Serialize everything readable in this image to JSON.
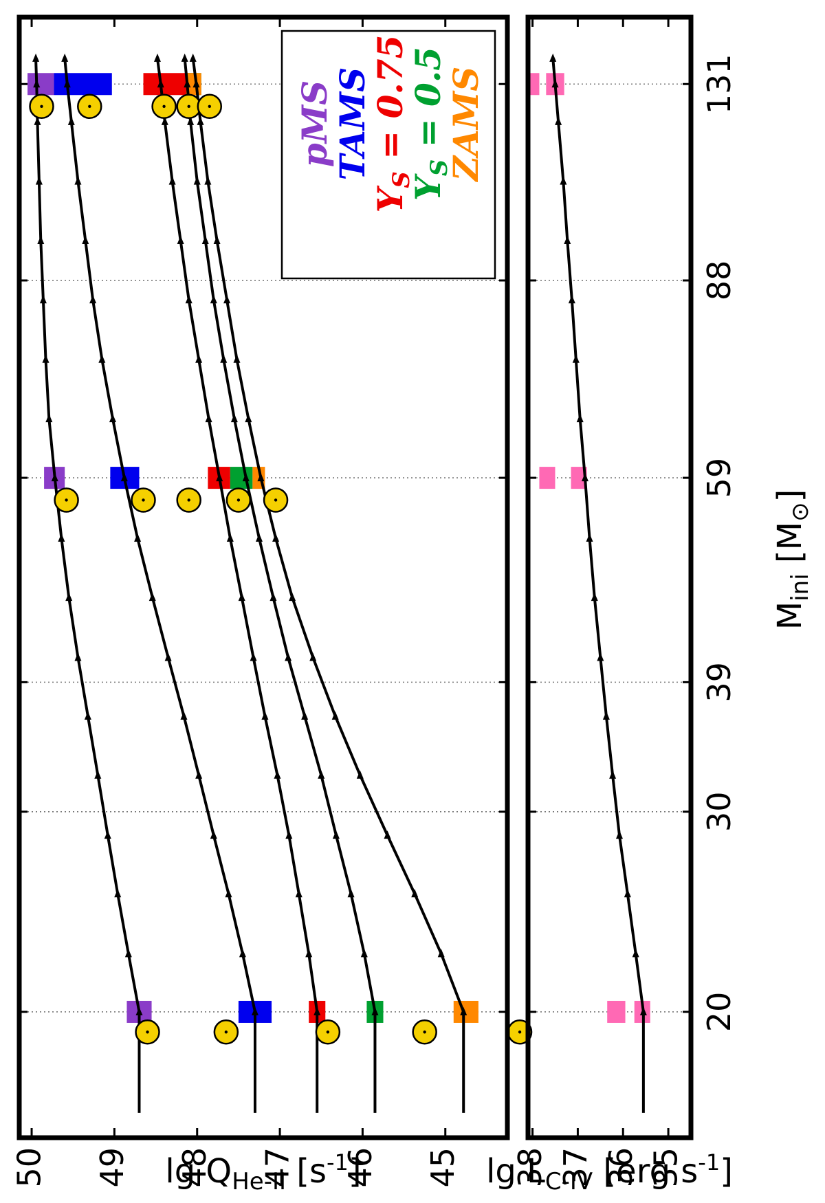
{
  "chart_data": {
    "type": "line",
    "x_label_text": "M",
    "x_label_sub": "ini",
    "x_label_unit": " [M",
    "x_label_sun": "⊙",
    "x_label_close": "]",
    "x_axis": {
      "scale": "log",
      "lim": [
        15.5,
        150
      ],
      "ticks": [
        20,
        30,
        39,
        59,
        88,
        131
      ]
    },
    "grid": "x-dotted",
    "legend_position": "top-right",
    "legend": [
      {
        "label": "pMS",
        "color": "#8a3cc8"
      },
      {
        "label": "TAMS",
        "color": "#0000ee"
      },
      {
        "label": "Y_S = 0.75",
        "main": "Y",
        "sub": "S",
        "rest": " = 0.75",
        "color": "#ee0000"
      },
      {
        "label": "Y_S = 0.5",
        "main": "Y",
        "sub": "S",
        "rest": " = 0.5",
        "color": "#00a030"
      },
      {
        "label": "ZAMS",
        "color": "#ff8800"
      }
    ],
    "panels": [
      {
        "id": "top",
        "ylabel_text": "lg Q",
        "ylabel_sub": "He-II",
        "ylabel_unit": " [s",
        "ylabel_sup": "-1",
        "ylabel_close": "]",
        "ylim": [
          44.25,
          50.15
        ],
        "yticks": [
          45,
          46,
          47,
          48,
          49,
          50
        ],
        "series": [
          {
            "name": "pMS",
            "x": [
              16.3,
              20,
              22.5,
              25.4,
              28.6,
              32.3,
              36.4,
              41,
              46.3,
              52.2,
              59,
              66.5,
              75,
              84.6,
              95.4,
              107.6,
              121.4,
              131,
              138
            ],
            "y": [
              48.7,
              48.7,
              48.83,
              48.96,
              49.08,
              49.2,
              49.32,
              49.44,
              49.55,
              49.64,
              49.72,
              49.79,
              49.83,
              49.86,
              49.89,
              49.91,
              49.93,
              49.94,
              49.95
            ]
          },
          {
            "name": "TAMS",
            "x": [
              16.3,
              20,
              22.5,
              25.4,
              28.6,
              32.3,
              36.4,
              41,
              46.3,
              52.2,
              59,
              66.5,
              75,
              84.6,
              95.4,
              107.6,
              121.4,
              131,
              138
            ],
            "y": [
              47.3,
              47.3,
              47.45,
              47.62,
              47.8,
              47.98,
              48.16,
              48.35,
              48.54,
              48.72,
              48.88,
              49.02,
              49.15,
              49.26,
              49.35,
              49.44,
              49.52,
              49.57,
              49.6
            ]
          },
          {
            "name": "Y_S = 0.75",
            "x": [
              16.3,
              20,
              22.5,
              25.4,
              28.6,
              32.3,
              36.4,
              41,
              46.3,
              52.2,
              59,
              66.5,
              75,
              84.6,
              95.4,
              107.6,
              121.4,
              131,
              138
            ],
            "y": [
              46.55,
              46.55,
              46.65,
              46.77,
              46.89,
              47.03,
              47.18,
              47.32,
              47.46,
              47.6,
              47.73,
              47.86,
              47.98,
              48.1,
              48.2,
              48.3,
              48.39,
              48.44,
              48.48
            ]
          },
          {
            "name": "Y_S = 0.5",
            "x": [
              16.3,
              20,
              22.5,
              25.4,
              28.6,
              32.3,
              36.4,
              41,
              46.3,
              52.2,
              59,
              66.5,
              75,
              84.6,
              95.4,
              107.6,
              121.4,
              131,
              138
            ],
            "y": [
              45.85,
              45.85,
              45.98,
              46.14,
              46.32,
              46.5,
              46.7,
              46.9,
              47.08,
              47.25,
              47.41,
              47.55,
              47.68,
              47.8,
              47.9,
              48,
              48.08,
              48.12,
              48.15
            ]
          },
          {
            "name": "ZAMS",
            "x": [
              16.3,
              20,
              22.5,
              25.4,
              28.6,
              32.3,
              36.4,
              41,
              46.3,
              52.2,
              59,
              66.5,
              75,
              84.6,
              95.4,
              107.6,
              121.4,
              131,
              138
            ],
            "y": [
              44.78,
              44.78,
              45.05,
              45.37,
              45.7,
              46.03,
              46.33,
              46.6,
              46.85,
              47.05,
              47.23,
              47.38,
              47.52,
              47.64,
              47.76,
              47.87,
              47.96,
              48.01,
              48.05
            ]
          }
        ],
        "boxes": [
          {
            "series": "pMS",
            "x": 20,
            "y0": 48.55,
            "y1": 48.85
          },
          {
            "series": "TAMS",
            "x": 20,
            "y0": 47.1,
            "y1": 47.5
          },
          {
            "series": "Y_S = 0.75",
            "x": 20,
            "y0": 46.45,
            "y1": 46.65
          },
          {
            "series": "Y_S = 0.5",
            "x": 20,
            "y0": 45.75,
            "y1": 45.95
          },
          {
            "series": "ZAMS",
            "x": 20,
            "y0": 44.6,
            "y1": 44.9
          },
          {
            "series": "pMS",
            "x": 59,
            "y0": 49.6,
            "y1": 49.85
          },
          {
            "series": "TAMS",
            "x": 59,
            "y0": 48.7,
            "y1": 49.05
          },
          {
            "series": "Y_S = 0.75",
            "x": 59,
            "y0": 47.6,
            "y1": 47.87
          },
          {
            "series": "Y_S = 0.5",
            "x": 59,
            "y0": 47.33,
            "y1": 47.6
          },
          {
            "series": "ZAMS",
            "x": 59,
            "y0": 47.18,
            "y1": 47.33
          },
          {
            "series": "pMS",
            "x": 131,
            "y0": 49.73,
            "y1": 50.05
          },
          {
            "series": "TAMS",
            "x": 131,
            "y0": 49.03,
            "y1": 49.73
          },
          {
            "series": "Y_S = 0.75",
            "x": 131,
            "y0": 48.03,
            "y1": 48.65
          },
          {
            "series": "Y_S = 0.5",
            "x": 131,
            "y0": 47.95,
            "y1": 48.13
          },
          {
            "series": "ZAMS",
            "x": 131,
            "y0": 47.95,
            "y1": 48.13
          }
        ],
        "circles": [
          {
            "x": 19.2,
            "y": 48.6
          },
          {
            "x": 19.2,
            "y": 47.65
          },
          {
            "x": 19.2,
            "y": 46.42
          },
          {
            "x": 19.2,
            "y": 45.25
          },
          {
            "x": 19.2,
            "y": 44.1
          },
          {
            "x": 56.4,
            "y": 49.58
          },
          {
            "x": 56.4,
            "y": 48.65
          },
          {
            "x": 56.4,
            "y": 48.1
          },
          {
            "x": 56.4,
            "y": 47.5
          },
          {
            "x": 56.4,
            "y": 47.05
          },
          {
            "x": 125.2,
            "y": 49.88
          },
          {
            "x": 125.2,
            "y": 49.3
          },
          {
            "x": 125.2,
            "y": 48.4
          },
          {
            "x": 125.2,
            "y": 48.1
          },
          {
            "x": 125.2,
            "y": 47.85
          }
        ]
      },
      {
        "id": "bottom",
        "ylabel_text": "lg L",
        "ylabel_sub": "C-IV",
        "ylabel_unit": " [erg s",
        "ylabel_sup": "-1",
        "ylabel_close": "]",
        "ylim": [
          34.5,
          38.1
        ],
        "yticks": [
          35,
          36,
          37,
          38
        ],
        "series": [
          {
            "name": "C-IV",
            "x": [
              16.3,
              20,
              22.5,
              25.4,
              28.6,
              32.3,
              36.4,
              41,
              46.3,
              52.2,
              59,
              66.5,
              75,
              84.6,
              95.4,
              107.6,
              121.4,
              131,
              138
            ],
            "y": [
              35.55,
              35.55,
              35.72,
              35.9,
              36.08,
              36.23,
              36.37,
              36.5,
              36.63,
              36.74,
              36.84,
              36.95,
              37.04,
              37.13,
              37.23,
              37.32,
              37.43,
              37.5,
              37.55
            ]
          }
        ],
        "boxes": [
          {
            "color": "#ff69b4",
            "x": 20,
            "y0": 35.4,
            "y1": 35.75
          },
          {
            "color": "#ff69b4",
            "x": 20,
            "y0": 35.95,
            "y1": 36.35
          },
          {
            "color": "#ff69b4",
            "x": 59,
            "y0": 36.8,
            "y1": 37.15
          },
          {
            "color": "#ff69b4",
            "x": 59,
            "y0": 37.5,
            "y1": 37.85
          },
          {
            "color": "#ff69b4",
            "x": 131,
            "y0": 37.3,
            "y1": 37.7
          },
          {
            "color": "#ff69b4",
            "x": 131,
            "y0": 37.85,
            "y1": 38.05
          }
        ]
      }
    ]
  }
}
